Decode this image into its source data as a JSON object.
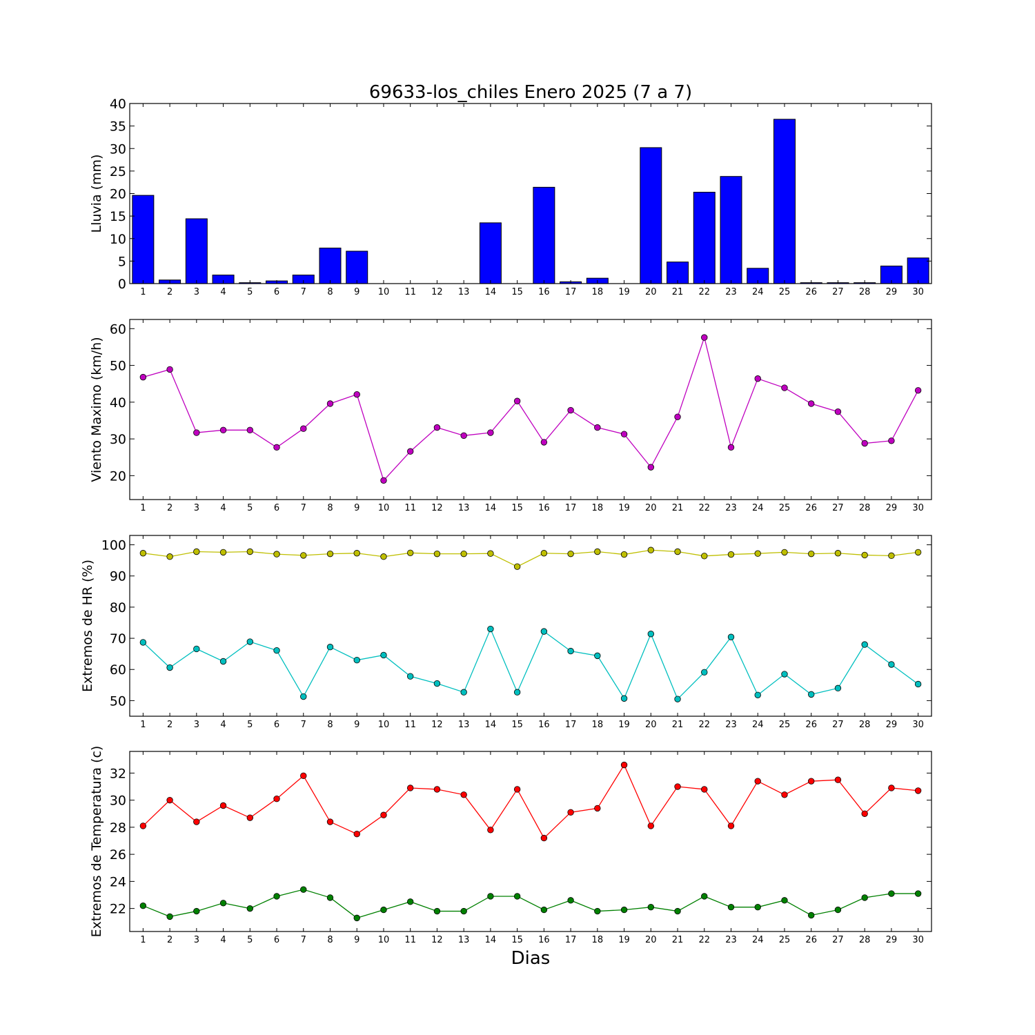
{
  "figure": {
    "title": "69633-los_chiles Enero 2025  (7 a 7)",
    "xlabel": "Dias"
  },
  "chart_data": [
    {
      "type": "bar",
      "ylabel": "Lluvia (mm)",
      "ylim": [
        0,
        40
      ],
      "yticks": [
        0,
        5,
        10,
        15,
        20,
        25,
        30,
        35,
        40
      ],
      "categories": [
        "1",
        "2",
        "3",
        "4",
        "5",
        "6",
        "7",
        "8",
        "9",
        "10",
        "11",
        "12",
        "13",
        "14",
        "15",
        "16",
        "17",
        "18",
        "19",
        "20",
        "21",
        "22",
        "23",
        "24",
        "25",
        "26",
        "27",
        "28",
        "29",
        "30"
      ],
      "series": [
        {
          "color": "#0000ff",
          "values": [
            19.6,
            0.8,
            14.4,
            1.9,
            0.2,
            0.6,
            1.9,
            7.9,
            7.2,
            0,
            0,
            0,
            0,
            13.5,
            0,
            21.4,
            0.4,
            1.2,
            0,
            30.2,
            4.8,
            20.3,
            23.8,
            3.4,
            36.5,
            0.2,
            0.2,
            0.2,
            3.9,
            5.7
          ]
        }
      ],
      "grid": false
    },
    {
      "type": "line",
      "ylabel": "Viento Maximo (km/h)",
      "ylim": [
        13.5,
        62.5
      ],
      "yticks": [
        20,
        30,
        40,
        50,
        60
      ],
      "categories": [
        "1",
        "2",
        "3",
        "4",
        "5",
        "6",
        "7",
        "8",
        "9",
        "10",
        "11",
        "12",
        "13",
        "14",
        "15",
        "16",
        "17",
        "18",
        "19",
        "20",
        "21",
        "22",
        "23",
        "24",
        "25",
        "26",
        "27",
        "28",
        "29",
        "30"
      ],
      "series": [
        {
          "color": "#bf00bf",
          "values": [
            46.8,
            48.9,
            31.7,
            32.4,
            32.4,
            27.7,
            32.8,
            39.6,
            42.1,
            18.7,
            26.6,
            33.1,
            30.9,
            31.7,
            40.3,
            29.1,
            37.8,
            33.1,
            31.3,
            22.3,
            36.0,
            57.6,
            27.7,
            46.4,
            43.9,
            39.6,
            37.4,
            28.8,
            29.5,
            43.2
          ]
        }
      ],
      "grid": false
    },
    {
      "type": "line",
      "ylabel": "Extremos de HR (%)",
      "ylim": [
        45,
        103
      ],
      "yticks": [
        50,
        60,
        70,
        80,
        90,
        100
      ],
      "categories": [
        "1",
        "2",
        "3",
        "4",
        "5",
        "6",
        "7",
        "8",
        "9",
        "10",
        "11",
        "12",
        "13",
        "14",
        "15",
        "16",
        "17",
        "18",
        "19",
        "20",
        "21",
        "22",
        "23",
        "24",
        "25",
        "26",
        "27",
        "28",
        "29",
        "30"
      ],
      "series": [
        {
          "color": "#bfbf00",
          "values": [
            97.3,
            96.2,
            97.8,
            97.6,
            97.8,
            97.0,
            96.6,
            97.1,
            97.3,
            96.2,
            97.4,
            97.1,
            97.1,
            97.2,
            93.0,
            97.3,
            97.1,
            97.8,
            96.9,
            98.3,
            97.8,
            96.4,
            96.9,
            97.2,
            97.6,
            97.1,
            97.3,
            96.7,
            96.5,
            97.6
          ]
        },
        {
          "color": "#00bfbf",
          "values": [
            68.7,
            60.6,
            66.6,
            62.6,
            68.9,
            66.1,
            51.3,
            67.2,
            63.0,
            64.6,
            57.8,
            55.5,
            52.7,
            73.0,
            52.7,
            72.2,
            65.9,
            64.4,
            50.7,
            71.4,
            50.5,
            59.1,
            70.4,
            51.8,
            58.5,
            52.0,
            54.0,
            68.0,
            61.6,
            55.3
          ]
        }
      ],
      "grid": false
    },
    {
      "type": "line",
      "ylabel": "Extremos de Temperatura (c)",
      "ylim": [
        20.3,
        33.6
      ],
      "yticks": [
        22,
        24,
        26,
        28,
        30,
        32
      ],
      "categories": [
        "1",
        "2",
        "3",
        "4",
        "5",
        "6",
        "7",
        "8",
        "9",
        "10",
        "11",
        "12",
        "13",
        "14",
        "15",
        "16",
        "17",
        "18",
        "19",
        "20",
        "21",
        "22",
        "23",
        "24",
        "25",
        "26",
        "27",
        "28",
        "29",
        "30"
      ],
      "series": [
        {
          "color": "#ff0000",
          "values": [
            28.1,
            30.0,
            28.4,
            29.6,
            28.7,
            30.1,
            31.8,
            28.4,
            27.5,
            28.9,
            30.9,
            30.8,
            30.4,
            27.8,
            30.8,
            27.2,
            29.1,
            29.4,
            32.6,
            28.1,
            31.0,
            30.8,
            28.1,
            31.4,
            30.4,
            31.4,
            31.5,
            29.0,
            30.9,
            30.7
          ]
        },
        {
          "color": "#008000",
          "values": [
            22.2,
            21.4,
            21.8,
            22.4,
            22.0,
            22.9,
            23.4,
            22.8,
            21.3,
            21.9,
            22.5,
            21.8,
            21.8,
            22.9,
            22.9,
            21.9,
            22.6,
            21.8,
            21.9,
            22.1,
            21.8,
            22.9,
            22.1,
            22.1,
            22.6,
            21.5,
            21.9,
            22.8,
            23.1,
            23.1
          ]
        }
      ],
      "grid": false
    }
  ]
}
